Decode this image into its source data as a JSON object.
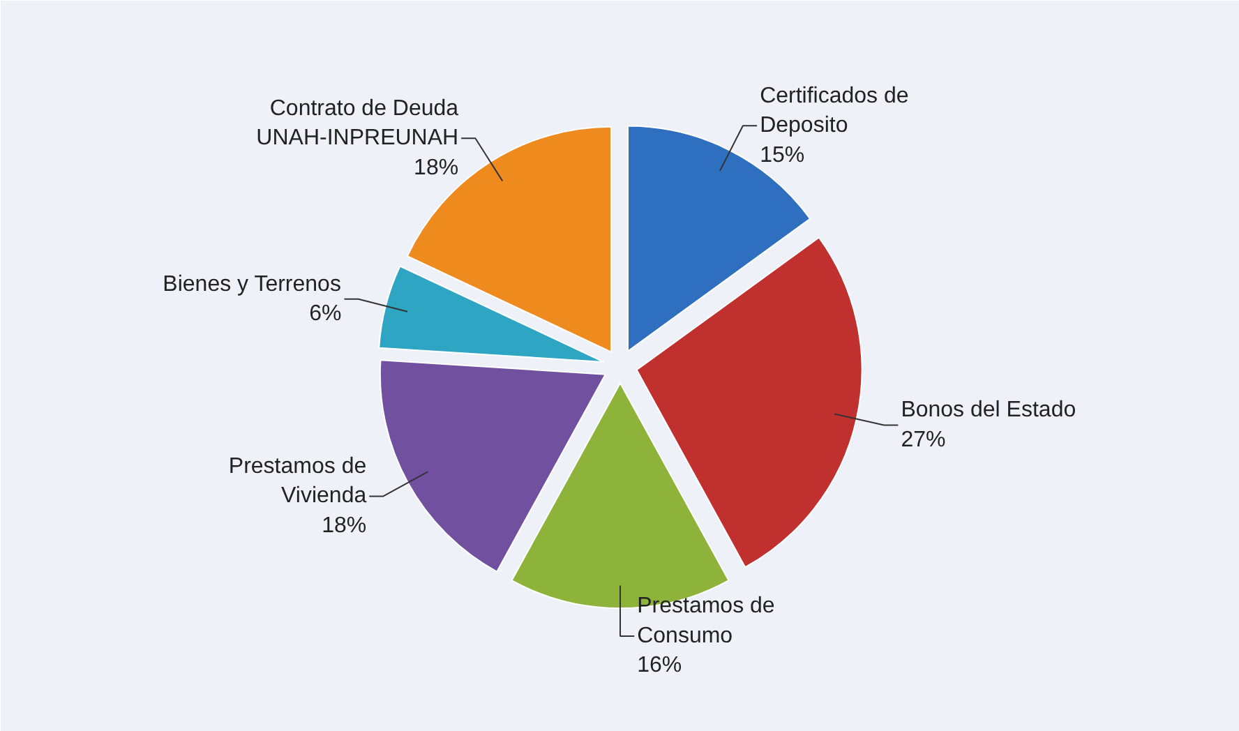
{
  "chart_data": {
    "type": "pie",
    "categories": [
      "Certificados de\nDeposito",
      "Bonos del Estado",
      "Prestamos de\nConsumo",
      "Prestamos de\nVivienda",
      "Bienes y Terrenos",
      "Contrato de Deuda\nUNAH-INPREUNAH"
    ],
    "values": [
      15,
      27,
      16,
      18,
      6,
      18
    ],
    "value_labels": [
      "15%",
      "27%",
      "16%",
      "18%",
      "6%",
      "18%"
    ],
    "colors": [
      "#2f6fbf",
      "#c0302f",
      "#8db33a",
      "#7150a0",
      "#2fa5c4",
      "#ef8a1f"
    ],
    "legend": false
  }
}
